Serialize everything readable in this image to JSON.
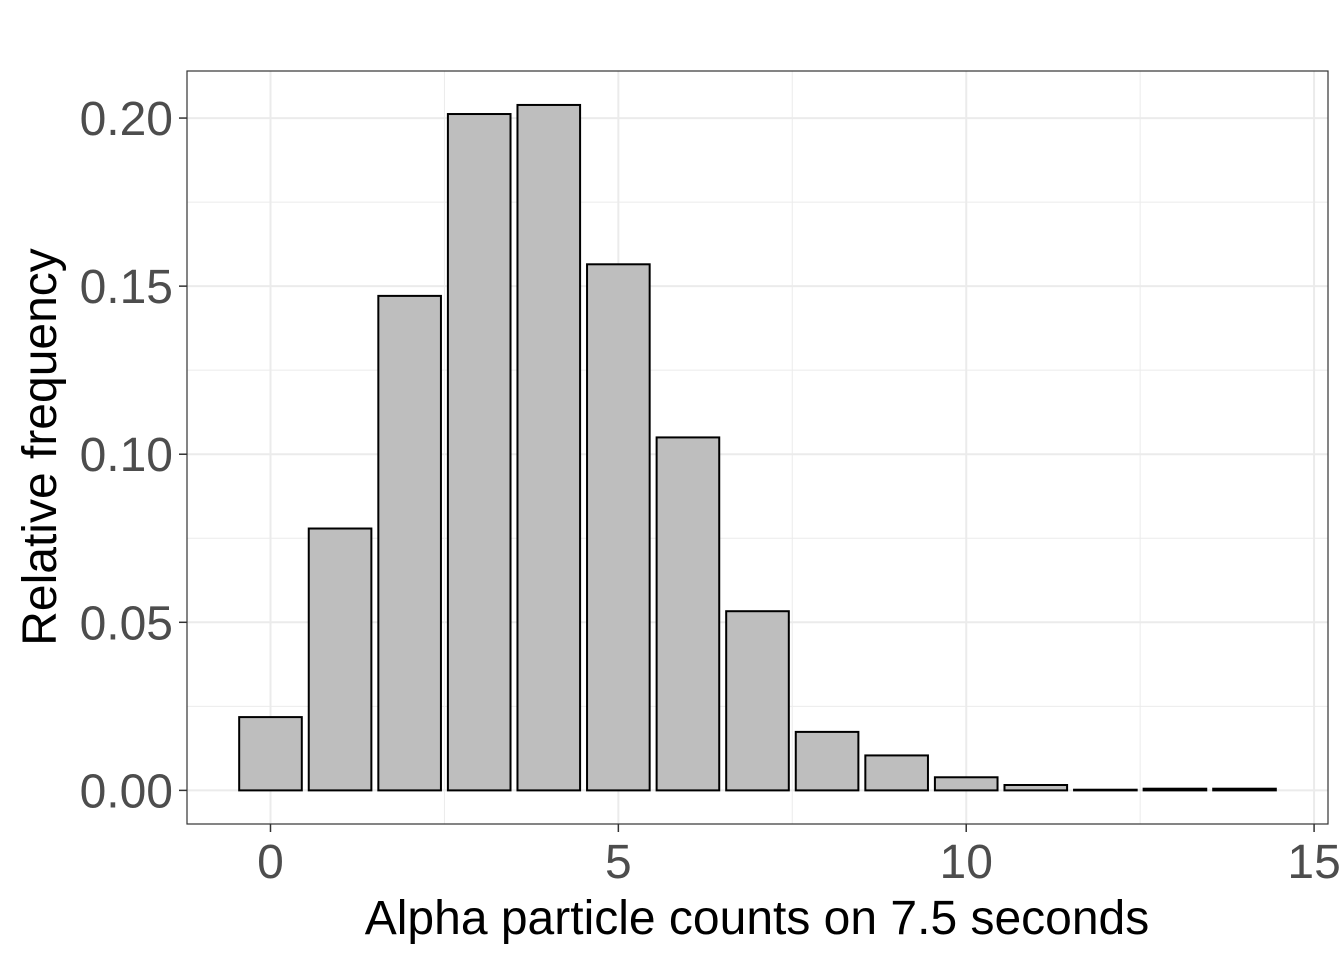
{
  "chart_data": {
    "type": "bar",
    "title": "",
    "xlabel": "Alpha particle counts on 7.5 seconds",
    "ylabel": "Relative frequency",
    "x": [
      0,
      1,
      2,
      3,
      4,
      5,
      6,
      7,
      8,
      9,
      10,
      11,
      12,
      13,
      14
    ],
    "values": [
      0.0218,
      0.0779,
      0.1471,
      0.2012,
      0.2039,
      0.1565,
      0.105,
      0.0533,
      0.0174,
      0.0104,
      0.0039,
      0.0016,
      0.0002,
      0.0005,
      0.0005
    ],
    "xlim": [
      -1.2,
      15.2
    ],
    "ylim": [
      -0.01,
      0.214
    ],
    "x_ticks": [
      0,
      5,
      10,
      15
    ],
    "x_tick_labels": [
      "0",
      "5",
      "10",
      "15"
    ],
    "y_ticks": [
      0.0,
      0.05,
      0.1,
      0.15,
      0.2
    ],
    "y_tick_labels": [
      "0.00",
      "0.05",
      "0.10",
      "0.15",
      "0.20"
    ],
    "grid": true,
    "legend": "none",
    "colors": {
      "bar_fill": "#bebebe",
      "bar_stroke": "#000000",
      "grid": "#ebebeb",
      "panel_border": "#333333",
      "tick_text": "#4d4d4d",
      "title_text": "#000000"
    }
  }
}
